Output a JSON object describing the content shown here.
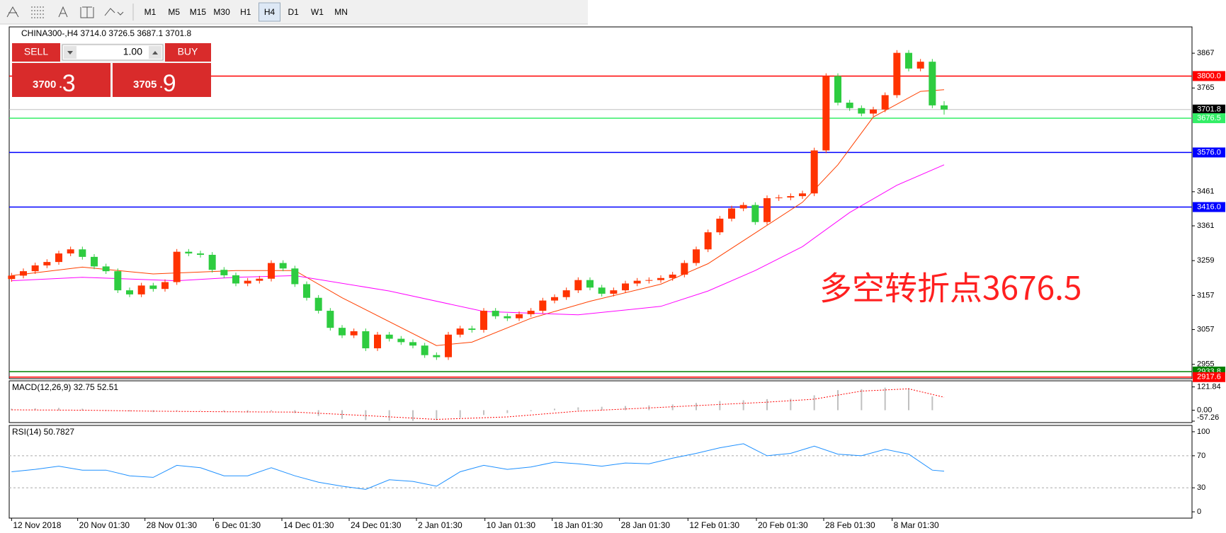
{
  "toolbar": {
    "timeframes": [
      "M1",
      "M5",
      "M15",
      "M30",
      "H1",
      "H4",
      "D1",
      "W1",
      "MN"
    ],
    "active": "H4"
  },
  "trade_panel": {
    "sell_label": "SELL",
    "buy_label": "BUY",
    "volume": "1.00",
    "sell_main": "3700 .",
    "sell_pips": "3",
    "buy_main": "3705 .",
    "buy_pips": "9"
  },
  "chart_data": [
    {
      "type": "candlestick",
      "title": "CHINA300-,H4  3714.0 3726.5 3687.1 3701.8",
      "xlim": [
        -0.2,
        100
      ],
      "ylim": [
        2915,
        3942
      ],
      "yticks": [
        3867,
        3765,
        3461,
        3361,
        3259,
        3157,
        3057,
        2955
      ],
      "up_color": "#ff3300",
      "down_color": "#2ecc40",
      "open": [
        3205,
        3215,
        3228,
        3245,
        3255,
        3280,
        3292,
        3270,
        3242,
        3228,
        3172,
        3160,
        3186,
        3176,
        3196,
        3285,
        3280,
        3276,
        3232,
        3216,
        3192,
        3200,
        3206,
        3252,
        3236,
        3190,
        3150,
        3112,
        3062,
        3040,
        3052,
        3002,
        3042,
        3030,
        3020,
        3010,
        2982,
        2976,
        3042,
        3060,
        3056,
        3112,
        3096,
        3090,
        3102,
        3112,
        3142,
        3152,
        3172,
        3202,
        3180,
        3162,
        3172,
        3192,
        3200,
        3202,
        3208,
        3218,
        3252,
        3292,
        3342,
        3382,
        3412,
        3422,
        3372,
        3442,
        3444,
        3448,
        3456,
        3582,
        3800,
        3722,
        3706,
        3690,
        3702,
        3744,
        3868,
        3822,
        3842,
        3714
      ],
      "high": [
        3223,
        3236,
        3253,
        3263,
        3288,
        3300,
        3300,
        3278,
        3250,
        3236,
        3180,
        3194,
        3194,
        3204,
        3293,
        3293,
        3288,
        3284,
        3240,
        3224,
        3208,
        3214,
        3260,
        3260,
        3244,
        3198,
        3158,
        3120,
        3070,
        3060,
        3060,
        3050,
        3050,
        3038,
        3028,
        3018,
        2990,
        3050,
        3068,
        3068,
        3120,
        3120,
        3104,
        3110,
        3120,
        3150,
        3160,
        3180,
        3210,
        3210,
        3188,
        3180,
        3200,
        3208,
        3210,
        3216,
        3226,
        3260,
        3300,
        3350,
        3390,
        3420,
        3430,
        3430,
        3450,
        3452,
        3456,
        3464,
        3590,
        3808,
        3808,
        3730,
        3714,
        3710,
        3752,
        3876,
        3876,
        3850,
        3850,
        3726.5
      ],
      "low": [
        3197,
        3207,
        3220,
        3237,
        3247,
        3272,
        3262,
        3234,
        3220,
        3164,
        3152,
        3152,
        3168,
        3168,
        3188,
        3272,
        3268,
        3224,
        3208,
        3184,
        3184,
        3192,
        3198,
        3228,
        3182,
        3142,
        3104,
        3054,
        3032,
        3032,
        2994,
        2994,
        3022,
        3012,
        3002,
        2974,
        2968,
        2968,
        3034,
        3048,
        3048,
        3088,
        3082,
        3082,
        3094,
        3104,
        3134,
        3144,
        3164,
        3172,
        3154,
        3154,
        3164,
        3184,
        3192,
        3194,
        3200,
        3210,
        3244,
        3284,
        3334,
        3374,
        3404,
        3364,
        3364,
        3434,
        3436,
        3440,
        3448,
        3574,
        3714,
        3698,
        3682,
        3682,
        3694,
        3736,
        3814,
        3814,
        3706,
        3687.1
      ],
      "close": [
        3215,
        3228,
        3245,
        3255,
        3280,
        3292,
        3270,
        3242,
        3228,
        3172,
        3160,
        3186,
        3176,
        3196,
        3285,
        3280,
        3276,
        3232,
        3216,
        3192,
        3200,
        3206,
        3252,
        3236,
        3190,
        3150,
        3112,
        3062,
        3040,
        3052,
        3002,
        3042,
        3030,
        3020,
        3010,
        2982,
        2976,
        3042,
        3060,
        3056,
        3112,
        3096,
        3090,
        3102,
        3112,
        3142,
        3152,
        3172,
        3202,
        3180,
        3162,
        3172,
        3192,
        3200,
        3202,
        3208,
        3218,
        3252,
        3292,
        3342,
        3382,
        3412,
        3422,
        3372,
        3442,
        3444,
        3448,
        3456,
        3582,
        3800,
        3722,
        3706,
        3690,
        3702,
        3744,
        3868,
        3822,
        3842,
        3714,
        3701.8
      ],
      "series": [
        {
          "color": "#ff4000",
          "x": [
            0,
            6,
            12,
            19,
            24,
            28,
            36,
            39,
            44,
            49,
            55,
            59,
            63,
            67,
            70,
            73,
            77,
            79
          ],
          "values": [
            3215,
            3240,
            3220,
            3230,
            3230,
            3150,
            3010,
            3020,
            3090,
            3140,
            3190,
            3250,
            3340,
            3430,
            3540,
            3680,
            3755,
            3760
          ]
        },
        {
          "color": "#ff00ff",
          "x": [
            0,
            6,
            14,
            19,
            24,
            32,
            40,
            48,
            55,
            59,
            63,
            67,
            71,
            75,
            79
          ],
          "values": [
            3200,
            3210,
            3200,
            3210,
            3215,
            3170,
            3110,
            3100,
            3125,
            3170,
            3230,
            3300,
            3400,
            3480,
            3540
          ]
        }
      ],
      "hlines": [
        {
          "value": 3800,
          "label": "3800.0",
          "color": "#ff0000",
          "text_color": "#ffffff"
        },
        {
          "value": 3701.8,
          "label": "3701.8",
          "color": "#000000",
          "line_color": "#c0c0c0",
          "text_color": "#ffffff"
        },
        {
          "value": 3676.5,
          "label": "3676.5",
          "color": "#33ee66",
          "text_color": "#ffffff"
        },
        {
          "value": 3576,
          "label": "3576.0",
          "color": "#0000ff",
          "text_color": "#ffffff"
        },
        {
          "value": 3416,
          "label": "3416.0",
          "color": "#0000ff",
          "text_color": "#ffffff"
        },
        {
          "value": 2933.8,
          "label": "2933.8",
          "color": "#008000",
          "text_color": "#ffffff"
        },
        {
          "value": 2917.6,
          "label": "2917.6",
          "color": "#ff0000",
          "text_color": "#ffffff"
        }
      ],
      "annotation": "多空转折点3676.5"
    },
    {
      "type": "macd",
      "title": "MACD(12,26,9) 32.75 52.51",
      "xlim": [
        -0.2,
        100
      ],
      "ylim": [
        -61,
        150
      ],
      "yticks": [
        121.84,
        {
          "value": 0,
          "label": "0.00"
        },
        -57.26
      ],
      "color": "#c0c0c0",
      "x": [
        0,
        2,
        4,
        6,
        8,
        10,
        12,
        14,
        16,
        18,
        20,
        22,
        24,
        26,
        28,
        30,
        32,
        34,
        36,
        38,
        40,
        42,
        44,
        46,
        48,
        50,
        52,
        54,
        56,
        58,
        60,
        62,
        64,
        66,
        68,
        70,
        72,
        74,
        76,
        78
      ],
      "values": [
        8,
        10,
        12,
        8,
        2,
        -6,
        -10,
        -4,
        -2,
        -8,
        -12,
        -6,
        -15,
        -30,
        -45,
        -52,
        -55,
        -56,
        -52,
        -40,
        -25,
        -15,
        -5,
        8,
        15,
        18,
        22,
        25,
        30,
        38,
        48,
        52,
        58,
        60,
        78,
        105,
        110,
        118,
        115,
        72
      ],
      "signal": {
        "color": "#ff0000",
        "x": [
          0,
          6,
          12,
          18,
          24,
          30,
          36,
          42,
          48,
          54,
          60,
          64,
          68,
          72,
          76,
          79
        ],
        "values": [
          2,
          0,
          -5,
          -8,
          -10,
          -28,
          -48,
          -35,
          -5,
          12,
          30,
          42,
          58,
          100,
          112,
          68
        ]
      }
    },
    {
      "type": "line",
      "title": "RSI(14) 50.7827",
      "xlim": [
        -0.2,
        100
      ],
      "ylim": [
        -7,
        107
      ],
      "yticks": [
        100,
        70,
        30,
        0
      ],
      "levels": [
        70,
        30
      ],
      "color": "#1e90ff",
      "x": [
        0,
        2,
        4,
        6,
        8,
        10,
        12,
        14,
        16,
        18,
        20,
        22,
        24,
        26,
        28,
        30,
        32,
        34,
        36,
        38,
        40,
        42,
        44,
        46,
        48,
        50,
        52,
        54,
        56,
        58,
        60,
        62,
        64,
        66,
        68,
        70,
        72,
        74,
        76,
        78,
        79
      ],
      "values": [
        50,
        53,
        57,
        52,
        52,
        45,
        43,
        58,
        55,
        45,
        45,
        55,
        45,
        37,
        32,
        28,
        40,
        38,
        32,
        50,
        58,
        53,
        56,
        62,
        60,
        57,
        61,
        60,
        67,
        73,
        80,
        85,
        70,
        73,
        82,
        72,
        70,
        78,
        72,
        52,
        50.7827
      ],
      "xticks": [
        {
          "value": 0,
          "label": "12 Nov 2018"
        },
        {
          "value": 5.6,
          "label": "20 Nov 01:30"
        },
        {
          "value": 11.3,
          "label": "28 Nov 01:30"
        },
        {
          "value": 17.1,
          "label": "6 Dec 01:30"
        },
        {
          "value": 22.9,
          "label": "14 Dec 01:30"
        },
        {
          "value": 28.6,
          "label": "24 Dec 01:30"
        },
        {
          "value": 34.3,
          "label": "2 Jan 01:30"
        },
        {
          "value": 40.1,
          "label": "10 Jan 01:30"
        },
        {
          "value": 45.8,
          "label": "18 Jan 01:30"
        },
        {
          "value": 51.5,
          "label": "28 Jan 01:30"
        },
        {
          "value": 57.3,
          "label": "12 Feb 01:30"
        },
        {
          "value": 63.1,
          "label": "20 Feb 01:30"
        },
        {
          "value": 68.8,
          "label": "28 Feb 01:30"
        },
        {
          "value": 74.6,
          "label": "8 Mar 01:30"
        }
      ]
    }
  ]
}
